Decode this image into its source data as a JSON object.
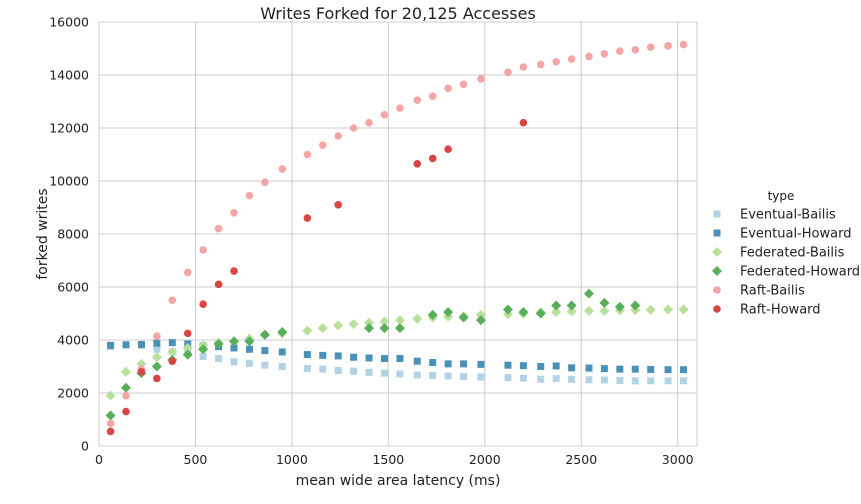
{
  "chart_data": {
    "type": "scatter",
    "title": "Writes Forked for 20,125 Accesses",
    "xlabel": "mean wide area latency (ms)",
    "ylabel": "forked writes",
    "xlim": [
      0,
      3100
    ],
    "ylim": [
      0,
      16000
    ],
    "xticks": [
      0,
      500,
      1000,
      1500,
      2000,
      2500,
      3000
    ],
    "yticks": [
      0,
      2000,
      4000,
      6000,
      8000,
      10000,
      12000,
      14000,
      16000
    ],
    "grid": true,
    "legend": {
      "title": "type",
      "position": "right"
    },
    "series": [
      {
        "name": "Eventual-Bailis",
        "marker": "square",
        "color": "#b2d3e4",
        "points": [
          [
            60,
            3750
          ],
          [
            140,
            3820
          ],
          [
            220,
            3800
          ],
          [
            300,
            3650
          ],
          [
            380,
            3550
          ],
          [
            460,
            3500
          ],
          [
            540,
            3380
          ],
          [
            620,
            3300
          ],
          [
            700,
            3180
          ],
          [
            780,
            3120
          ],
          [
            860,
            3050
          ],
          [
            950,
            3000
          ],
          [
            1080,
            2920
          ],
          [
            1160,
            2900
          ],
          [
            1240,
            2850
          ],
          [
            1320,
            2820
          ],
          [
            1400,
            2780
          ],
          [
            1480,
            2750
          ],
          [
            1560,
            2720
          ],
          [
            1650,
            2680
          ],
          [
            1730,
            2660
          ],
          [
            1810,
            2640
          ],
          [
            1890,
            2620
          ],
          [
            1980,
            2600
          ],
          [
            2120,
            2580
          ],
          [
            2200,
            2560
          ],
          [
            2290,
            2520
          ],
          [
            2370,
            2540
          ],
          [
            2450,
            2520
          ],
          [
            2540,
            2500
          ],
          [
            2620,
            2490
          ],
          [
            2700,
            2470
          ],
          [
            2780,
            2460
          ],
          [
            2860,
            2460
          ],
          [
            2950,
            2460
          ],
          [
            3030,
            2460
          ]
        ]
      },
      {
        "name": "Eventual-Howard",
        "marker": "square",
        "color": "#4a91b8",
        "points": [
          [
            60,
            3800
          ],
          [
            140,
            3820
          ],
          [
            220,
            3830
          ],
          [
            300,
            3880
          ],
          [
            380,
            3900
          ],
          [
            460,
            3850
          ],
          [
            540,
            3780
          ],
          [
            620,
            3750
          ],
          [
            700,
            3700
          ],
          [
            780,
            3650
          ],
          [
            860,
            3600
          ],
          [
            950,
            3550
          ],
          [
            1080,
            3450
          ],
          [
            1160,
            3420
          ],
          [
            1240,
            3400
          ],
          [
            1320,
            3350
          ],
          [
            1400,
            3320
          ],
          [
            1480,
            3300
          ],
          [
            1560,
            3300
          ],
          [
            1650,
            3200
          ],
          [
            1730,
            3150
          ],
          [
            1810,
            3100
          ],
          [
            1890,
            3100
          ],
          [
            1980,
            3080
          ],
          [
            2120,
            3050
          ],
          [
            2200,
            3030
          ],
          [
            2290,
            3000
          ],
          [
            2370,
            3020
          ],
          [
            2450,
            2950
          ],
          [
            2540,
            2940
          ],
          [
            2620,
            2920
          ],
          [
            2700,
            2900
          ],
          [
            2780,
            2900
          ],
          [
            2860,
            2890
          ],
          [
            2950,
            2880
          ],
          [
            3030,
            2880
          ]
        ]
      },
      {
        "name": "Federated-Bailis",
        "marker": "diamond",
        "color": "#b9e09b",
        "points": [
          [
            60,
            1900
          ],
          [
            140,
            2800
          ],
          [
            220,
            3100
          ],
          [
            300,
            3350
          ],
          [
            380,
            3550
          ],
          [
            460,
            3700
          ],
          [
            540,
            3800
          ],
          [
            620,
            3900
          ],
          [
            700,
            3950
          ],
          [
            780,
            4050
          ],
          [
            860,
            4200
          ],
          [
            950,
            4250
          ],
          [
            1080,
            4350
          ],
          [
            1160,
            4450
          ],
          [
            1240,
            4550
          ],
          [
            1320,
            4600
          ],
          [
            1400,
            4650
          ],
          [
            1480,
            4700
          ],
          [
            1560,
            4750
          ],
          [
            1650,
            4800
          ],
          [
            1730,
            4850
          ],
          [
            1810,
            4880
          ],
          [
            1890,
            4900
          ],
          [
            1980,
            4950
          ],
          [
            2120,
            4980
          ],
          [
            2200,
            5000
          ],
          [
            2290,
            5050
          ],
          [
            2370,
            5050
          ],
          [
            2450,
            5080
          ],
          [
            2540,
            5100
          ],
          [
            2620,
            5100
          ],
          [
            2700,
            5120
          ],
          [
            2780,
            5130
          ],
          [
            2860,
            5140
          ],
          [
            2950,
            5150
          ],
          [
            3030,
            5150
          ]
        ]
      },
      {
        "name": "Federated-Howard",
        "marker": "diamond",
        "color": "#5aae5a",
        "points": [
          [
            60,
            1150
          ],
          [
            140,
            2200
          ],
          [
            220,
            2750
          ],
          [
            300,
            3000
          ],
          [
            380,
            3250
          ],
          [
            460,
            3450
          ],
          [
            540,
            3650
          ],
          [
            620,
            3850
          ],
          [
            700,
            3950
          ],
          [
            780,
            3950
          ],
          [
            860,
            4200
          ],
          [
            950,
            4300
          ],
          [
            1400,
            4450
          ],
          [
            1480,
            4450
          ],
          [
            1560,
            4450
          ],
          [
            1730,
            4950
          ],
          [
            1810,
            5050
          ],
          [
            1890,
            4850
          ],
          [
            1980,
            4750
          ],
          [
            2120,
            5150
          ],
          [
            2200,
            5050
          ],
          [
            2290,
            5000
          ],
          [
            2370,
            5300
          ],
          [
            2450,
            5300
          ],
          [
            2540,
            5750
          ],
          [
            2620,
            5400
          ],
          [
            2700,
            5250
          ],
          [
            2780,
            5300
          ]
        ]
      },
      {
        "name": "Raft-Bailis",
        "marker": "circle",
        "color": "#f4a6a6",
        "points": [
          [
            60,
            850
          ],
          [
            140,
            1900
          ],
          [
            220,
            2900
          ],
          [
            300,
            4150
          ],
          [
            380,
            5500
          ],
          [
            460,
            6550
          ],
          [
            540,
            7400
          ],
          [
            620,
            8200
          ],
          [
            700,
            8800
          ],
          [
            780,
            9450
          ],
          [
            860,
            9950
          ],
          [
            950,
            10450
          ],
          [
            1080,
            11000
          ],
          [
            1160,
            11350
          ],
          [
            1240,
            11700
          ],
          [
            1320,
            12000
          ],
          [
            1400,
            12200
          ],
          [
            1480,
            12500
          ],
          [
            1560,
            12750
          ],
          [
            1650,
            13050
          ],
          [
            1730,
            13200
          ],
          [
            1810,
            13500
          ],
          [
            1890,
            13650
          ],
          [
            1980,
            13850
          ],
          [
            2120,
            14100
          ],
          [
            2200,
            14300
          ],
          [
            2290,
            14400
          ],
          [
            2370,
            14500
          ],
          [
            2450,
            14600
          ],
          [
            2540,
            14700
          ],
          [
            2620,
            14800
          ],
          [
            2700,
            14900
          ],
          [
            2780,
            14950
          ],
          [
            2860,
            15050
          ],
          [
            2950,
            15100
          ],
          [
            3030,
            15150
          ]
        ]
      },
      {
        "name": "Raft-Howard",
        "marker": "circle",
        "color": "#d94545",
        "points": [
          [
            60,
            550
          ],
          [
            140,
            1300
          ],
          [
            220,
            2800
          ],
          [
            300,
            2550
          ],
          [
            380,
            3200
          ],
          [
            460,
            4250
          ],
          [
            540,
            5350
          ],
          [
            620,
            6100
          ],
          [
            700,
            6600
          ],
          [
            1080,
            8600
          ],
          [
            1240,
            9100
          ],
          [
            1650,
            10650
          ],
          [
            1730,
            10850
          ],
          [
            1810,
            11200
          ],
          [
            2200,
            12200
          ]
        ]
      }
    ]
  }
}
